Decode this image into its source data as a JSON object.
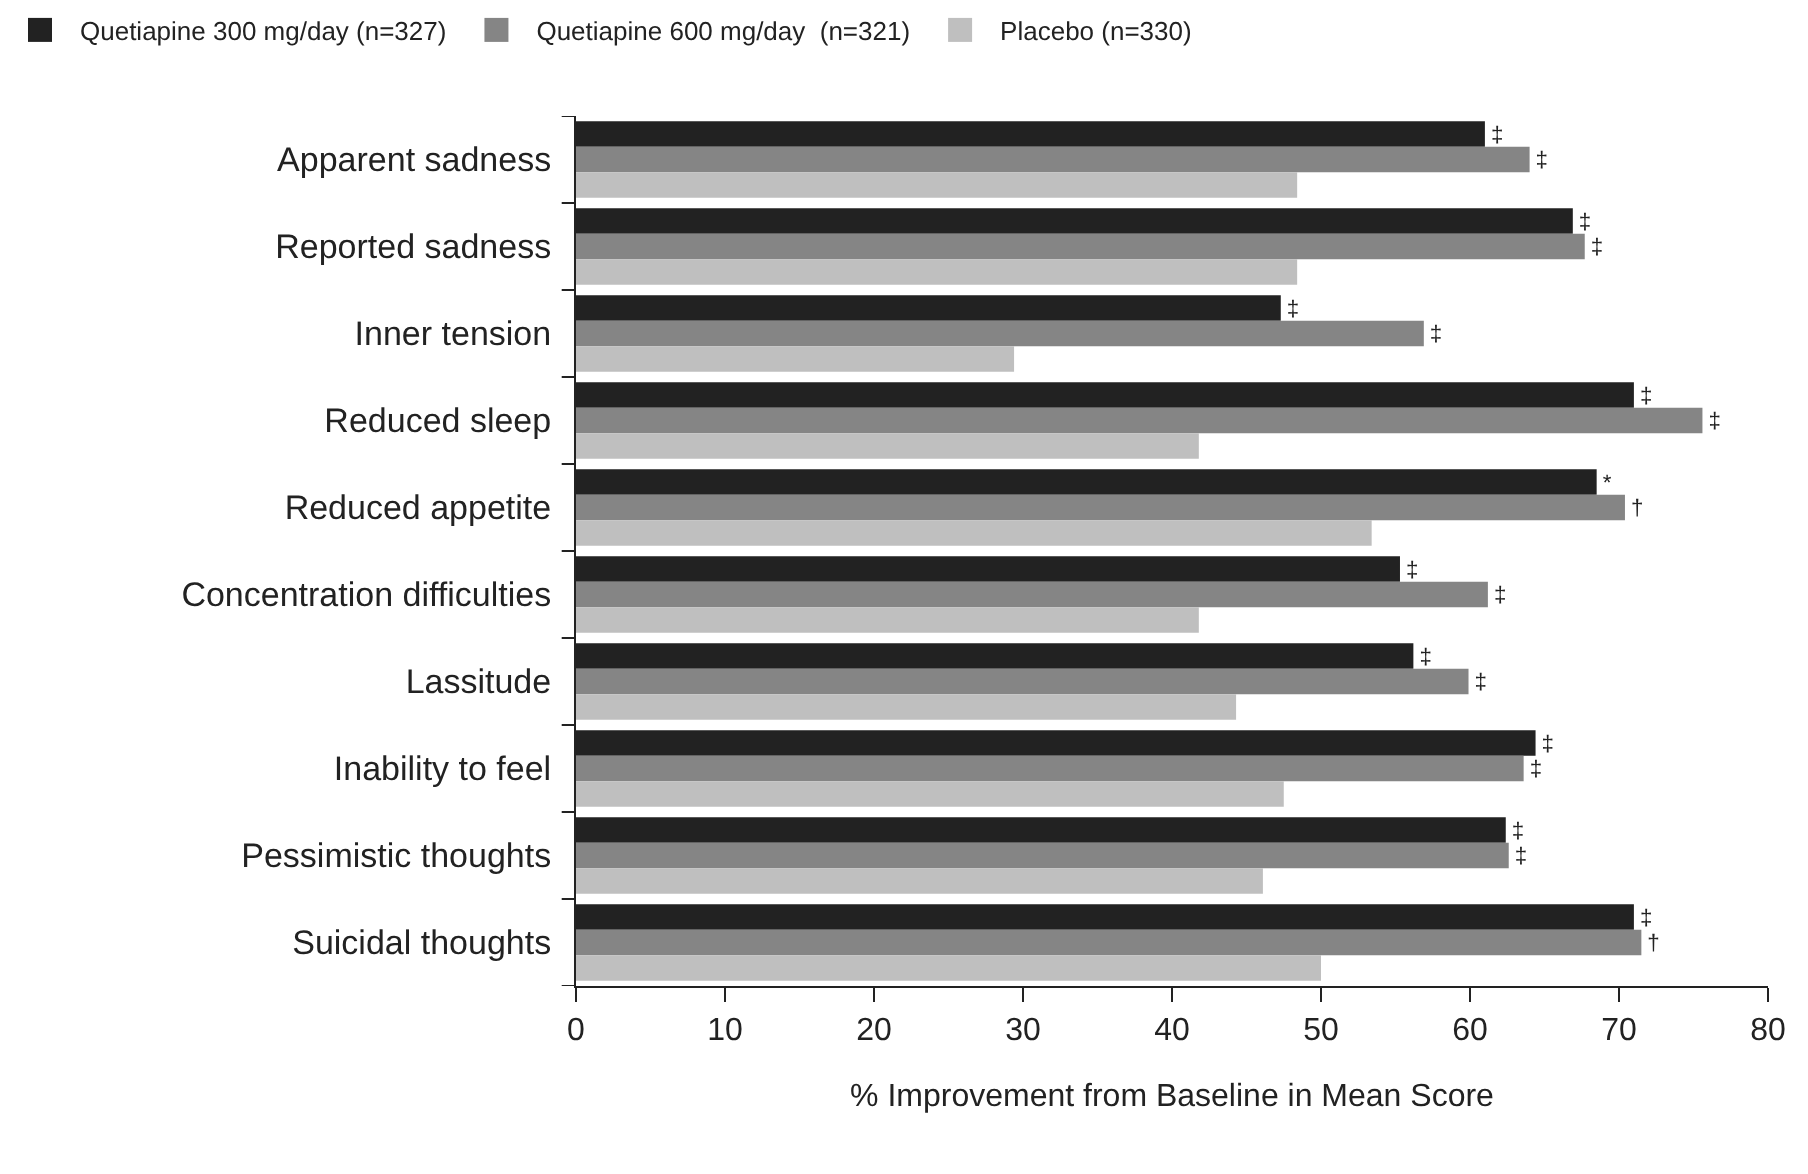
{
  "chart_data": {
    "type": "bar",
    "orientation": "horizontal",
    "xlabel": "% Improvement from Baseline in Mean Score",
    "categories": [
      "Apparent sadness",
      "Reported sadness",
      "Inner tension",
      "Reduced sleep",
      "Reduced appetite",
      "Concentration difficulties",
      "Lassitude",
      "Inability to feel",
      "Pessimistic thoughts",
      "Suicidal thoughts"
    ],
    "series": [
      {
        "name": "Quetiapine 300 mg/day (n=327)",
        "color": "#222222",
        "values": [
          61,
          66.9,
          47.3,
          71,
          68.5,
          55.3,
          56.2,
          64.4,
          62.4,
          71
        ],
        "value_labels": [
          "‡",
          "‡",
          "‡",
          "‡",
          "*",
          "‡",
          "‡",
          "‡",
          "‡",
          "‡"
        ]
      },
      {
        "name": "Quetiapine 600 mg/day  (n=321)",
        "color": "#858585",
        "values": [
          64,
          67.7,
          56.9,
          75.6,
          70.4,
          61.2,
          59.9,
          63.6,
          62.6,
          71.5
        ],
        "value_labels": [
          "‡",
          "‡",
          "‡",
          "‡",
          "†",
          "‡",
          "‡",
          "‡",
          "‡",
          "†"
        ]
      },
      {
        "name": "Placebo (n=330)",
        "color": "#bfbfbf",
        "values": [
          48.4,
          48.4,
          29.4,
          41.8,
          53.4,
          41.8,
          44.3,
          47.5,
          46.1,
          50
        ]
      }
    ],
    "xlim": [
      0,
      80
    ],
    "xticks": [
      0,
      10,
      20,
      30,
      40,
      50,
      60,
      70,
      80
    ],
    "legend": "top left"
  }
}
